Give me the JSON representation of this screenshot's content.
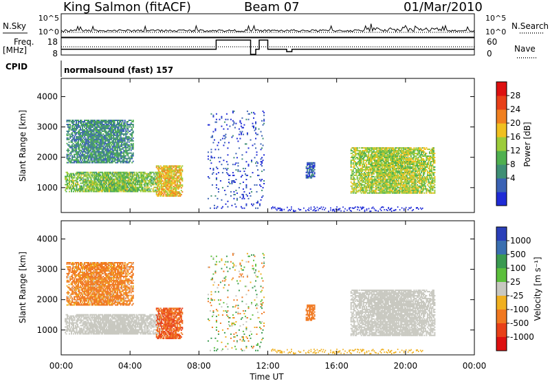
{
  "header": {
    "station": "King Salmon (fitACF)",
    "beam": "Beam 07",
    "date": "01/Mar/2010"
  },
  "status": {
    "nsky_label": "N.Sky",
    "nsearch_label": "N.Search",
    "noise_ticks": [
      "10^5",
      "10^0"
    ],
    "freq_label": "Freq.",
    "freq_unit": "[MHz]",
    "freq_ticks": [
      "18",
      "8"
    ],
    "nave_label": "Nave",
    "nave_ticks": [
      "60",
      "0"
    ],
    "cpid_label": "CPID",
    "cpid_text": "normalsound (fast) 157"
  },
  "axes": {
    "ylabel": "Slant Range [km]",
    "yticks": [
      "1000",
      "2000",
      "3000",
      "4000"
    ],
    "xlabel": "Time UT",
    "xticks": [
      "00:00",
      "04:00",
      "08:00",
      "12:00",
      "16:00",
      "20:00",
      "00:00"
    ]
  },
  "power_scale": {
    "title": "Power [dB]",
    "labels": [
      "28",
      "24",
      "20",
      "16",
      "12",
      "8",
      "4"
    ]
  },
  "velocity_scale": {
    "title": "Velocity [m s⁻¹]",
    "labels": [
      "1000",
      "500",
      "100",
      "25",
      "-25",
      "-100",
      "-500",
      "-1000"
    ]
  },
  "colors": {
    "power": [
      "#1f2bd6",
      "#3a62b4",
      "#3f8f75",
      "#4fb04f",
      "#9ccc3a",
      "#f0c020",
      "#f08020",
      "#e84018",
      "#dd1010"
    ],
    "velocity": [
      "#2a3fb8",
      "#3a6fb0",
      "#3a9a50",
      "#5cbf3c",
      "#c8c8c0",
      "#f0b020",
      "#f07820",
      "#e84018",
      "#dd1010"
    ],
    "ground_scatter": "#c8c8c0"
  },
  "chart_data": {
    "type": "heatmap",
    "time_range_h": [
      0,
      24
    ],
    "range_km": [
      180,
      4600
    ],
    "frequency_mhz": [
      {
        "t": [
          0,
          9
        ],
        "value": 11.2
      },
      {
        "t": [
          9,
          11
        ],
        "value": 17.0
      },
      {
        "t": [
          11,
          11.3
        ],
        "value": 8.0
      },
      {
        "t": [
          11.3,
          11.5
        ],
        "value": 11.2
      },
      {
        "t": [
          11.5,
          12
        ],
        "value": 17.0
      },
      {
        "t": [
          12,
          13.1
        ],
        "value": 11.2
      },
      {
        "t": [
          13.1,
          13.4
        ],
        "value": 9.7
      },
      {
        "t": [
          13.4,
          24
        ],
        "value": 11.2
      }
    ],
    "data_gap_h": [
      11.85,
      12.05
    ],
    "scatter_regions": [
      {
        "name": "ground scatter band 1",
        "t": [
          0.2,
          5.8
        ],
        "range_km": [
          850,
          1500
        ],
        "power_db": 16,
        "velocity": 0
      },
      {
        "name": "ionospheric scatter 1",
        "t": [
          0.3,
          4.2
        ],
        "range_km": [
          1800,
          3200
        ],
        "power_db": 10,
        "velocity": -200
      },
      {
        "name": "ionospheric scatter 2",
        "t": [
          5.5,
          7.0
        ],
        "range_km": [
          700,
          1700
        ],
        "power_db": 22,
        "velocity": -500
      },
      {
        "name": "patch",
        "t": [
          14.2,
          14.7
        ],
        "range_km": [
          1300,
          1800
        ],
        "power_db": 6,
        "velocity": -300
      },
      {
        "name": "ground scatter band 2",
        "t": [
          16.8,
          21.7
        ],
        "range_km": [
          800,
          2300
        ],
        "power_db": 18,
        "velocity": 0
      },
      {
        "name": "sporadic scatter",
        "t": [
          8.5,
          11.8
        ],
        "range_km": [
          300,
          3500
        ],
        "power_db": 4,
        "velocity": 0
      }
    ]
  }
}
